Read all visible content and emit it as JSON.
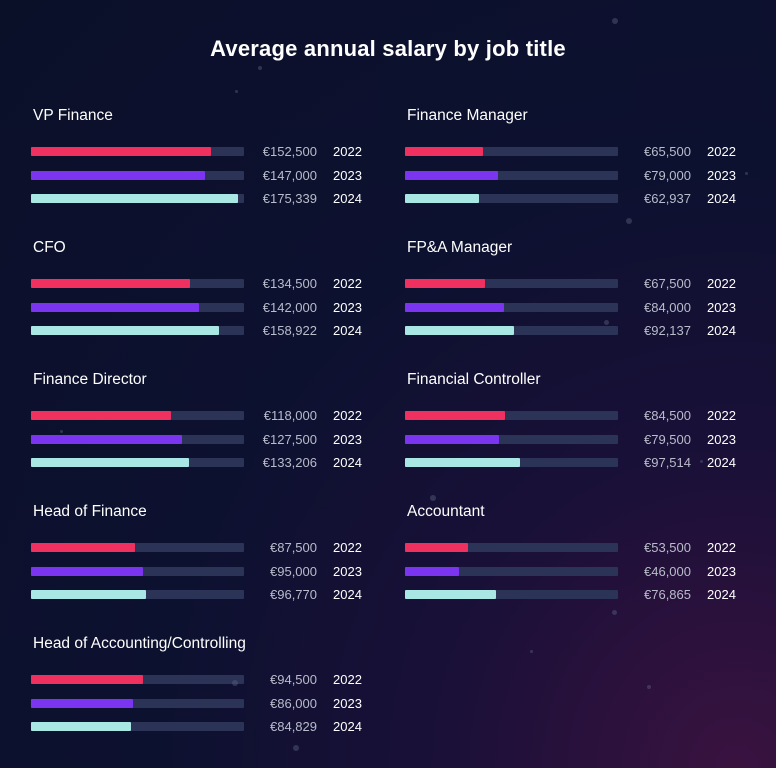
{
  "chart_data": {
    "type": "bar",
    "orientation": "horizontal",
    "title": "Average annual salary by job title",
    "colors": {
      "2022": "#f0305e",
      "2023": "#7b35f0",
      "2024": "#a9e7e4",
      "track": "#2b3356"
    },
    "scale_max": 180000,
    "groups": [
      {
        "name": "VP Finance",
        "bars": [
          {
            "year": "2022",
            "value": 152500,
            "label": "€152,500"
          },
          {
            "year": "2023",
            "value": 147000,
            "label": "€147,000"
          },
          {
            "year": "2024",
            "value": 175339,
            "label": "€175,339"
          }
        ]
      },
      {
        "name": "Finance Manager",
        "bars": [
          {
            "year": "2022",
            "value": 65500,
            "label": "€65,500"
          },
          {
            "year": "2023",
            "value": 79000,
            "label": "€79,000"
          },
          {
            "year": "2024",
            "value": 62937,
            "label": "€62,937"
          }
        ]
      },
      {
        "name": "CFO",
        "bars": [
          {
            "year": "2022",
            "value": 134500,
            "label": "€134,500"
          },
          {
            "year": "2023",
            "value": 142000,
            "label": "€142,000"
          },
          {
            "year": "2024",
            "value": 158922,
            "label": "€158,922"
          }
        ]
      },
      {
        "name": "FP&A Manager",
        "bars": [
          {
            "year": "2022",
            "value": 67500,
            "label": "€67,500"
          },
          {
            "year": "2023",
            "value": 84000,
            "label": "€84,000"
          },
          {
            "year": "2024",
            "value": 92137,
            "label": "€92,137"
          }
        ]
      },
      {
        "name": "Finance Director",
        "bars": [
          {
            "year": "2022",
            "value": 118000,
            "label": "€118,000"
          },
          {
            "year": "2023",
            "value": 127500,
            "label": "€127,500"
          },
          {
            "year": "2024",
            "value": 133206,
            "label": "€133,206"
          }
        ]
      },
      {
        "name": "Financial Controller",
        "bars": [
          {
            "year": "2022",
            "value": 84500,
            "label": "€84,500"
          },
          {
            "year": "2023",
            "value": 79500,
            "label": "€79,500"
          },
          {
            "year": "2024",
            "value": 97514,
            "label": "€97,514"
          }
        ]
      },
      {
        "name": "Head of Finance",
        "bars": [
          {
            "year": "2022",
            "value": 87500,
            "label": "€87,500"
          },
          {
            "year": "2023",
            "value": 95000,
            "label": "€95,000"
          },
          {
            "year": "2024",
            "value": 96770,
            "label": "€96,770"
          }
        ]
      },
      {
        "name": "Accountant",
        "bars": [
          {
            "year": "2022",
            "value": 53500,
            "label": "€53,500"
          },
          {
            "year": "2023",
            "value": 46000,
            "label": "€46,000"
          },
          {
            "year": "2024",
            "value": 76865,
            "label": "€76,865"
          }
        ]
      },
      {
        "name": "Head of Accounting/Controlling",
        "bars": [
          {
            "year": "2022",
            "value": 94500,
            "label": "€94,500"
          },
          {
            "year": "2023",
            "value": 86000,
            "label": "€86,000"
          },
          {
            "year": "2024",
            "value": 84829,
            "label": "€84,829"
          }
        ]
      }
    ]
  }
}
